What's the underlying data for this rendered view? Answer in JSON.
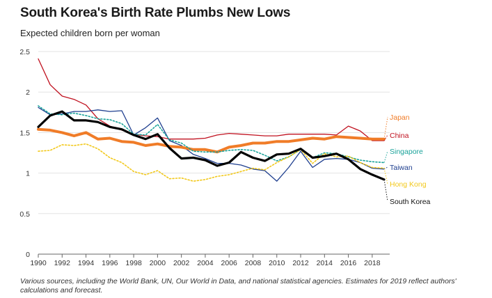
{
  "title": "South Korea's Birth Rate Plumbs New Lows",
  "subtitle": "Expected children born per woman",
  "footnote": "Various sources, including the World Bank, UN, Our World in Data, and national statistical agencies. Estimates for 2019 reflect authors' calculations and forecast.",
  "chart_data": {
    "type": "line",
    "title": "South Korea's Birth Rate Plumbs New Lows",
    "ylabel": "Expected children born per woman",
    "xlabel": "",
    "xlim": [
      1990,
      2019
    ],
    "ylim": [
      0,
      2.5
    ],
    "x_ticks": [
      "1990",
      "1992",
      "1994",
      "1996",
      "1998",
      "2000",
      "2002",
      "2004",
      "2006",
      "2008",
      "2010",
      "2012",
      "2014",
      "2016",
      "2018"
    ],
    "y_ticks": [
      "0",
      "0.5",
      "1",
      "1.5",
      "2",
      "2.5"
    ],
    "grid": true,
    "legend": "end-labels-right",
    "x": [
      1990,
      1991,
      1992,
      1993,
      1994,
      1995,
      1996,
      1997,
      1998,
      1999,
      2000,
      2001,
      2002,
      2003,
      2004,
      2005,
      2006,
      2007,
      2008,
      2009,
      2010,
      2011,
      2012,
      2013,
      2014,
      2015,
      2016,
      2017,
      2018,
      2019
    ],
    "series": [
      {
        "name": "China",
        "color": "#c0111f",
        "style": "solid",
        "width": 1.3,
        "values": [
          2.41,
          2.09,
          1.95,
          1.91,
          1.84,
          1.67,
          1.58,
          1.53,
          1.48,
          1.46,
          1.45,
          1.42,
          1.42,
          1.42,
          1.43,
          1.47,
          1.49,
          1.48,
          1.47,
          1.46,
          1.46,
          1.48,
          1.48,
          1.48,
          1.48,
          1.47,
          1.58,
          1.52,
          1.4,
          1.4
        ]
      },
      {
        "name": "Taiwan",
        "color": "#1f3f8f",
        "style": "solid",
        "width": 1.3,
        "values": [
          1.81,
          1.72,
          1.73,
          1.76,
          1.76,
          1.78,
          1.76,
          1.77,
          1.47,
          1.56,
          1.68,
          1.4,
          1.34,
          1.23,
          1.18,
          1.12,
          1.12,
          1.1,
          1.05,
          1.03,
          0.9,
          1.07,
          1.27,
          1.07,
          1.17,
          1.18,
          1.17,
          1.13,
          1.06,
          1.05
        ]
      },
      {
        "name": "Japan",
        "color": "#f07c28",
        "style": "solid",
        "width": 4,
        "values": [
          1.54,
          1.53,
          1.5,
          1.46,
          1.5,
          1.42,
          1.43,
          1.39,
          1.38,
          1.34,
          1.36,
          1.33,
          1.32,
          1.29,
          1.29,
          1.26,
          1.32,
          1.34,
          1.37,
          1.37,
          1.39,
          1.39,
          1.41,
          1.43,
          1.42,
          1.45,
          1.44,
          1.43,
          1.42,
          1.42
        ]
      },
      {
        "name": "Singapore",
        "color": "#1aa39a",
        "style": "dotted",
        "width": 1.6,
        "values": [
          1.83,
          1.73,
          1.72,
          1.74,
          1.71,
          1.67,
          1.66,
          1.61,
          1.48,
          1.47,
          1.6,
          1.41,
          1.37,
          1.27,
          1.26,
          1.26,
          1.28,
          1.29,
          1.28,
          1.22,
          1.15,
          1.2,
          1.29,
          1.19,
          1.25,
          1.24,
          1.2,
          1.16,
          1.14,
          1.13
        ]
      },
      {
        "name": "Hong Kong",
        "color": "#f2c81a",
        "style": "dotted",
        "width": 1.6,
        "values": [
          1.27,
          1.28,
          1.35,
          1.34,
          1.36,
          1.3,
          1.19,
          1.13,
          1.02,
          0.98,
          1.03,
          0.93,
          0.94,
          0.9,
          0.92,
          0.96,
          0.98,
          1.02,
          1.06,
          1.04,
          1.13,
          1.2,
          1.29,
          1.12,
          1.24,
          1.2,
          1.21,
          1.13,
          1.07,
          1.06
        ]
      },
      {
        "name": "South Korea",
        "color": "#000000",
        "style": "solid",
        "width": 3.2,
        "values": [
          1.57,
          1.71,
          1.76,
          1.65,
          1.65,
          1.63,
          1.57,
          1.54,
          1.47,
          1.42,
          1.48,
          1.31,
          1.18,
          1.19,
          1.16,
          1.09,
          1.13,
          1.26,
          1.19,
          1.15,
          1.23,
          1.24,
          1.3,
          1.19,
          1.21,
          1.24,
          1.17,
          1.05,
          0.98,
          0.92
        ]
      }
    ],
    "end_labels": [
      {
        "text": "Japan",
        "color": "#f07c28"
      },
      {
        "text": "China",
        "color": "#c0111f"
      },
      {
        "text": "Singapore",
        "color": "#1aa39a"
      },
      {
        "text": "Taiwan",
        "color": "#1f3f8f"
      },
      {
        "text": "Hong Kong",
        "color": "#f2c81a"
      },
      {
        "text": "South Korea",
        "color": "#111111"
      }
    ]
  }
}
